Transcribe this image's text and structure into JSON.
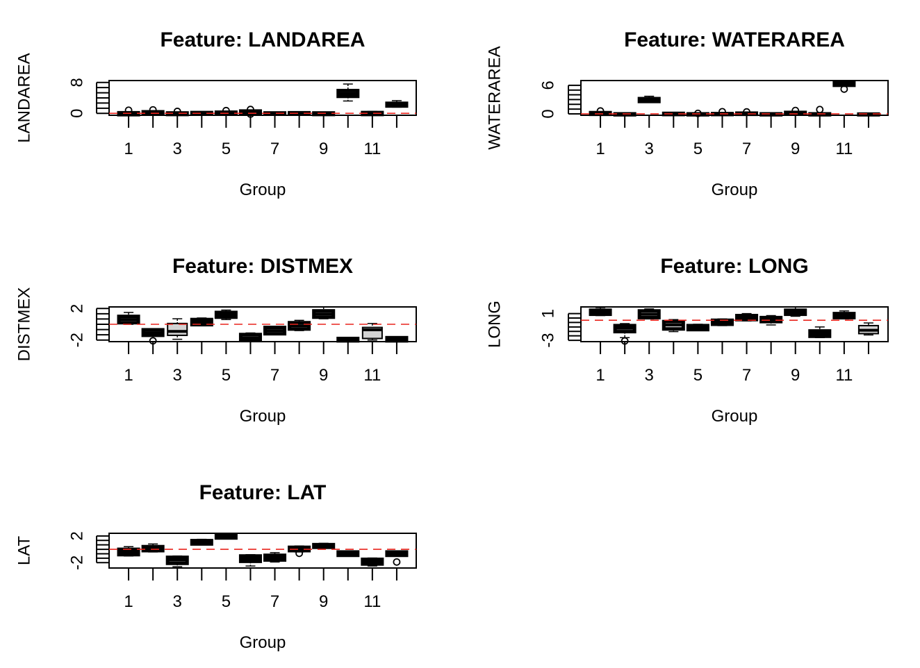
{
  "chart_data": [
    {
      "type": "boxplot",
      "title": "Feature: LANDAREA",
      "xlabel": "Group",
      "ylabel": "LANDAREA",
      "categories": [
        1,
        2,
        3,
        4,
        5,
        6,
        7,
        8,
        9,
        10,
        11,
        12
      ],
      "x_tick_labels": [
        "1",
        "3",
        "5",
        "7",
        "9",
        "11"
      ],
      "y_ticks": [
        0,
        8
      ],
      "ylim": [
        -0.5,
        8.5
      ],
      "reference_line": {
        "y": 0,
        "color": "#e8241c",
        "style": "dashed"
      },
      "boxes": [
        {
          "group": 1,
          "q1": -0.35,
          "median": -0.15,
          "q3": 0.15,
          "whisker_low": -0.5,
          "whisker_high": 0.4,
          "outliers": [
            0.8
          ]
        },
        {
          "group": 2,
          "q1": -0.1,
          "median": 0.1,
          "q3": 0.4,
          "whisker_low": -0.3,
          "whisker_high": 0.7,
          "outliers": [
            0.9
          ]
        },
        {
          "group": 3,
          "q1": -0.3,
          "median": -0.1,
          "q3": 0.1,
          "whisker_low": -0.5,
          "whisker_high": 0.3,
          "outliers": [
            0.5
          ]
        },
        {
          "group": 4,
          "q1": -0.2,
          "median": 0,
          "q3": 0.2,
          "whisker_low": -0.5,
          "whisker_high": 0.4,
          "outliers": []
        },
        {
          "group": 5,
          "q1": -0.1,
          "median": 0.1,
          "q3": 0.3,
          "whisker_low": -0.3,
          "whisker_high": 0.5,
          "outliers": [
            0.7
          ]
        },
        {
          "group": 6,
          "q1": 0.1,
          "median": 0.3,
          "q3": 0.6,
          "whisker_low": -0.2,
          "whisker_high": 0.9,
          "outliers": [
            1.0,
            -0.2
          ]
        },
        {
          "group": 7,
          "q1": -0.15,
          "median": 0,
          "q3": 0.1,
          "whisker_low": -0.4,
          "whisker_high": 0.3,
          "outliers": []
        },
        {
          "group": 8,
          "q1": -0.15,
          "median": 0,
          "q3": 0.15,
          "whisker_low": -0.5,
          "whisker_high": 0.3,
          "outliers": []
        },
        {
          "group": 9,
          "q1": -0.3,
          "median": -0.1,
          "q3": 0.1,
          "whisker_low": -0.5,
          "whisker_high": 0.3,
          "outliers": []
        },
        {
          "group": 10,
          "q1": 4.4,
          "median": 5.1,
          "q3": 5.9,
          "whisker_low": 3.2,
          "whisker_high": 7.6,
          "outliers": []
        },
        {
          "group": 11,
          "q1": -0.3,
          "median": -0.1,
          "q3": 0.2,
          "whisker_low": -0.5,
          "whisker_high": 0.5,
          "outliers": []
        },
        {
          "group": 12,
          "q1": 1.9,
          "median": 2.3,
          "q3": 2.6,
          "whisker_low": 1.6,
          "whisker_high": 3.3,
          "outliers": []
        }
      ]
    },
    {
      "type": "boxplot",
      "title": "Feature: WATERAREA",
      "xlabel": "Group",
      "ylabel": "WATERAREA",
      "categories": [
        1,
        2,
        3,
        4,
        5,
        6,
        7,
        8,
        9,
        10,
        11,
        12
      ],
      "x_tick_labels": [
        "1",
        "3",
        "5",
        "7",
        "9",
        "11"
      ],
      "y_ticks": [
        0,
        6
      ],
      "ylim": [
        -0.3,
        7.0
      ],
      "reference_line": {
        "y": 0,
        "color": "#e8241c",
        "style": "dashed"
      },
      "boxes": [
        {
          "group": 1,
          "q1": -0.1,
          "median": 0.05,
          "q3": 0.25,
          "whisker_low": -0.2,
          "whisker_high": 0.4,
          "outliers": [
            0.6
          ]
        },
        {
          "group": 2,
          "q1": -0.2,
          "median": -0.1,
          "q3": 0,
          "whisker_low": -0.25,
          "whisker_high": 0.1,
          "outliers": []
        },
        {
          "group": 3,
          "q1": 2.6,
          "median": 2.9,
          "q3": 3.2,
          "whisker_low": 2.4,
          "whisker_high": 3.7,
          "outliers": []
        },
        {
          "group": 4,
          "q1": -0.15,
          "median": -0.05,
          "q3": 0.1,
          "whisker_low": -0.2,
          "whisker_high": 0.2,
          "outliers": []
        },
        {
          "group": 5,
          "q1": -0.2,
          "median": -0.1,
          "q3": 0,
          "whisker_low": -0.25,
          "whisker_high": 0.05,
          "outliers": [
            0.1
          ]
        },
        {
          "group": 6,
          "q1": -0.15,
          "median": -0.05,
          "q3": 0.05,
          "whisker_low": -0.2,
          "whisker_high": 0.15,
          "outliers": [
            0.45
          ]
        },
        {
          "group": 7,
          "q1": -0.1,
          "median": 0,
          "q3": 0.15,
          "whisker_low": -0.2,
          "whisker_high": 0.25,
          "outliers": [
            0.4
          ]
        },
        {
          "group": 8,
          "q1": -0.2,
          "median": -0.1,
          "q3": 0,
          "whisker_low": -0.25,
          "whisker_high": 0.05,
          "outliers": []
        },
        {
          "group": 9,
          "q1": -0.05,
          "median": 0.1,
          "q3": 0.3,
          "whisker_low": -0.15,
          "whisker_high": 0.5,
          "outliers": [
            0.7
          ]
        },
        {
          "group": 10,
          "q1": -0.2,
          "median": -0.1,
          "q3": 0,
          "whisker_low": -0.25,
          "whisker_high": 0.1,
          "outliers": [
            0.9
          ]
        },
        {
          "group": 11,
          "q1": 6.0,
          "median": 6.2,
          "q3": 6.5,
          "whisker_low": 5.8,
          "whisker_high": 6.8,
          "outliers": [
            5.2
          ]
        },
        {
          "group": 12,
          "q1": -0.2,
          "median": -0.12,
          "q3": -0.05,
          "whisker_low": -0.25,
          "whisker_high": 0,
          "outliers": []
        }
      ]
    },
    {
      "type": "boxplot",
      "title": "Feature: DISTMEX",
      "xlabel": "Group",
      "ylabel": "DISTMEX",
      "categories": [
        1,
        2,
        3,
        4,
        5,
        6,
        7,
        8,
        9,
        10,
        11,
        12
      ],
      "x_tick_labels": [
        "1",
        "3",
        "5",
        "7",
        "9",
        "11"
      ],
      "y_ticks": [
        -2,
        2
      ],
      "ylim": [
        -2.2,
        2.2
      ],
      "reference_line": {
        "y": 0,
        "color": "#e8241c",
        "style": "dashed"
      },
      "boxes": [
        {
          "group": 1,
          "q1": 0.2,
          "median": 0.6,
          "q3": 1.0,
          "whisker_low": 0.0,
          "whisker_high": 1.5,
          "outliers": []
        },
        {
          "group": 2,
          "q1": -1.4,
          "median": -1.1,
          "q3": -0.7,
          "whisker_low": -1.5,
          "whisker_high": -0.6,
          "outliers": [
            -2.1
          ]
        },
        {
          "group": 3,
          "q1": -1.4,
          "median": -0.9,
          "q3": 0.1,
          "whisker_low": -1.9,
          "whisker_high": 0.7,
          "outliers": [],
          "fill": "#d3d3d3"
        },
        {
          "group": 4,
          "q1": -0.05,
          "median": 0.3,
          "q3": 0.6,
          "whisker_low": -0.2,
          "whisker_high": 0.8,
          "outliers": []
        },
        {
          "group": 5,
          "q1": 0.9,
          "median": 1.2,
          "q3": 1.5,
          "whisker_low": 0.6,
          "whisker_high": 1.8,
          "outliers": []
        },
        {
          "group": 6,
          "q1": -2.0,
          "median": -1.7,
          "q3": -1.3,
          "whisker_low": -2.1,
          "whisker_high": -1.1,
          "outliers": []
        },
        {
          "group": 7,
          "q1": -1.2,
          "median": -0.8,
          "q3": -0.4,
          "whisker_low": -1.3,
          "whisker_high": -0.3,
          "outliers": []
        },
        {
          "group": 8,
          "q1": -0.6,
          "median": -0.2,
          "q3": 0.2,
          "whisker_low": -0.8,
          "whisker_high": 0.5,
          "outliers": []
        },
        {
          "group": 9,
          "q1": 0.9,
          "median": 1.3,
          "q3": 1.7,
          "whisker_low": 0.7,
          "whisker_high": 2.2,
          "outliers": []
        },
        {
          "group": 10,
          "q1": -2.1,
          "median": -1.9,
          "q3": -1.8,
          "whisker_low": -2.1,
          "whisker_high": -1.7,
          "outliers": []
        },
        {
          "group": 11,
          "q1": -1.8,
          "median": -0.7,
          "q3": -0.4,
          "whisker_low": -2.0,
          "whisker_high": 0.1,
          "outliers": [],
          "fill": "#d3d3d3"
        },
        {
          "group": 12,
          "q1": -2.1,
          "median": -1.9,
          "q3": -1.7,
          "whisker_low": -2.1,
          "whisker_high": -1.6,
          "outliers": []
        }
      ]
    },
    {
      "type": "boxplot",
      "title": "Feature: LONG",
      "xlabel": "Group",
      "ylabel": "LONG",
      "categories": [
        1,
        2,
        3,
        4,
        5,
        6,
        7,
        8,
        9,
        10,
        11,
        12
      ],
      "x_tick_labels": [
        "1",
        "3",
        "5",
        "7",
        "9",
        "11"
      ],
      "y_ticks": [
        -3,
        1
      ],
      "ylim": [
        -3.2,
        2.0
      ],
      "reference_line": {
        "y": 0,
        "color": "#e8241c",
        "style": "dashed"
      },
      "boxes": [
        {
          "group": 1,
          "q1": 0.9,
          "median": 1.2,
          "q3": 1.5,
          "whisker_low": 0.7,
          "whisker_high": 1.9,
          "outliers": []
        },
        {
          "group": 2,
          "q1": -1.7,
          "median": -1.2,
          "q3": -0.8,
          "whisker_low": -2.6,
          "whisker_high": -0.5,
          "outliers": [
            -3.1
          ]
        },
        {
          "group": 3,
          "q1": 0.4,
          "median": 0.9,
          "q3": 1.4,
          "whisker_low": 0.2,
          "whisker_high": 1.7,
          "outliers": []
        },
        {
          "group": 4,
          "q1": -1.3,
          "median": -0.7,
          "q3": -0.2,
          "whisker_low": -1.7,
          "whisker_high": 0.1,
          "outliers": []
        },
        {
          "group": 5,
          "q1": -1.4,
          "median": -1.1,
          "q3": -0.8,
          "whisker_low": -1.5,
          "whisker_high": -0.6,
          "outliers": []
        },
        {
          "group": 6,
          "q1": -0.6,
          "median": -0.3,
          "q3": 0,
          "whisker_low": -0.8,
          "whisker_high": 0.2,
          "outliers": []
        },
        {
          "group": 7,
          "q1": 0.1,
          "median": 0.4,
          "q3": 0.7,
          "whisker_low": -0.1,
          "whisker_high": 1.0,
          "outliers": []
        },
        {
          "group": 8,
          "q1": -0.2,
          "median": 0.1,
          "q3": 0.4,
          "whisker_low": -0.7,
          "whisker_high": 0.7,
          "outliers": []
        },
        {
          "group": 9,
          "q1": 0.9,
          "median": 1.2,
          "q3": 1.5,
          "whisker_low": 0.6,
          "whisker_high": 2.0,
          "outliers": []
        },
        {
          "group": 10,
          "q1": -2.4,
          "median": -2.0,
          "q3": -1.6,
          "whisker_low": -2.6,
          "whisker_high": -1.0,
          "outliers": []
        },
        {
          "group": 11,
          "q1": 0.4,
          "median": 0.7,
          "q3": 1.0,
          "whisker_low": 0.2,
          "whisker_high": 1.4,
          "outliers": []
        },
        {
          "group": 12,
          "q1": -2.0,
          "median": -1.5,
          "q3": -0.8,
          "whisker_low": -2.2,
          "whisker_high": -0.4,
          "outliers": [],
          "fill": "#d3d3d3"
        }
      ]
    },
    {
      "type": "boxplot",
      "title": "Feature: LAT",
      "xlabel": "Group",
      "ylabel": "LAT",
      "categories": [
        1,
        2,
        3,
        4,
        5,
        6,
        7,
        8,
        9,
        10,
        11,
        12
      ],
      "x_tick_labels": [
        "1",
        "3",
        "5",
        "7",
        "9",
        "11"
      ],
      "y_ticks": [
        -2,
        2
      ],
      "ylim": [
        -2.8,
        2.4
      ],
      "reference_line": {
        "y": 0,
        "color": "#e8241c",
        "style": "dashed"
      },
      "boxes": [
        {
          "group": 1,
          "q1": -0.8,
          "median": -0.4,
          "q3": 0,
          "whisker_low": -1.0,
          "whisker_high": 0.4,
          "outliers": []
        },
        {
          "group": 2,
          "q1": -0.2,
          "median": 0.1,
          "q3": 0.4,
          "whisker_low": -0.4,
          "whisker_high": 0.8,
          "outliers": []
        },
        {
          "group": 3,
          "q1": -2.1,
          "median": -1.6,
          "q3": -1.2,
          "whisker_low": -2.6,
          "whisker_high": -1.0,
          "outliers": []
        },
        {
          "group": 4,
          "q1": 0.8,
          "median": 1.0,
          "q3": 1.3,
          "whisker_low": 0.7,
          "whisker_high": 1.5,
          "outliers": []
        },
        {
          "group": 5,
          "q1": 1.7,
          "median": 1.9,
          "q3": 2.1,
          "whisker_low": 1.6,
          "whisker_high": 2.3,
          "outliers": []
        },
        {
          "group": 6,
          "q1": -1.8,
          "median": -1.4,
          "q3": -1.0,
          "whisker_low": -2.5,
          "whisker_high": -0.8,
          "outliers": []
        },
        {
          "group": 7,
          "q1": -1.6,
          "median": -1.2,
          "q3": -0.9,
          "whisker_low": -1.9,
          "whisker_high": -0.5,
          "outliers": []
        },
        {
          "group": 8,
          "q1": -0.2,
          "median": 0.1,
          "q3": 0.3,
          "whisker_low": -0.4,
          "whisker_high": 0.5,
          "outliers": [
            -0.6
          ]
        },
        {
          "group": 9,
          "q1": 0.3,
          "median": 0.5,
          "q3": 0.7,
          "whisker_low": 0.2,
          "whisker_high": 0.9,
          "outliers": []
        },
        {
          "group": 10,
          "q1": -0.9,
          "median": -0.7,
          "q3": -0.4,
          "whisker_low": -1.0,
          "whisker_high": -0.3,
          "outliers": []
        },
        {
          "group": 11,
          "q1": -2.2,
          "median": -1.9,
          "q3": -1.5,
          "whisker_low": -2.5,
          "whisker_high": -1.3,
          "outliers": []
        },
        {
          "group": 12,
          "q1": -0.9,
          "median": -0.6,
          "q3": -0.4,
          "whisker_low": -1.0,
          "whisker_high": -0.3,
          "outliers": [
            -1.9
          ]
        }
      ]
    }
  ]
}
